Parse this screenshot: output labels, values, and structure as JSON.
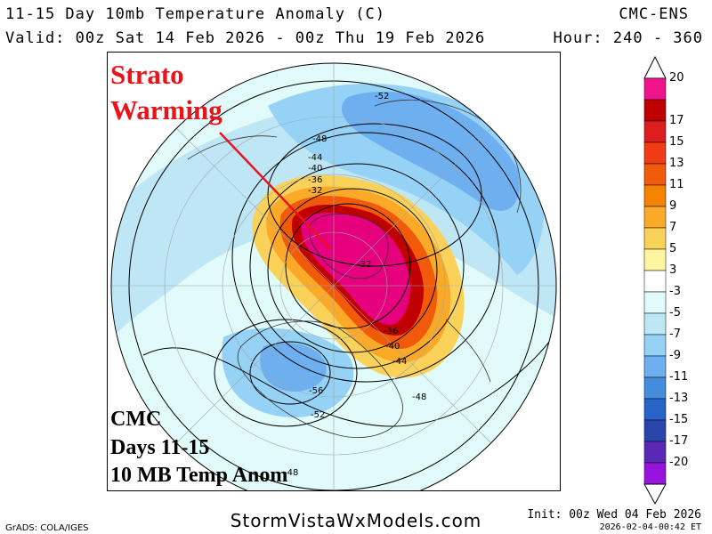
{
  "header": {
    "title": "11-15 Day 10mb Temperature Anomaly (C)",
    "model": "CMC-ENS",
    "valid": "Valid: 00z Sat 14 Feb 2026 - 00z Thu 19 Feb 2026",
    "hour": "Hour: 240 - 360"
  },
  "annotation": {
    "line1": "Strato",
    "line2": "Warming"
  },
  "label_box": {
    "line1": "CMC",
    "line2": "Days 11-15",
    "line3": "10 MB Temp Anom"
  },
  "footer": {
    "website": "StormVistaWxModels.com",
    "init": "Init: 00z Wed 04 Feb 2026",
    "stamp": "2026-02-04-00:42 ET",
    "credit": "GrADS: COLA/IGES"
  },
  "colorbar": {
    "ticks": [
      "20",
      "17",
      "15",
      "13",
      "11",
      "9",
      "7",
      "5",
      "3",
      "-3",
      "-5",
      "-7",
      "-9",
      "-11",
      "-13",
      "-15",
      "-17",
      "-20"
    ],
    "colors": [
      "#f0148c",
      "#c00000",
      "#dc1e1e",
      "#f03c14",
      "#f05a0a",
      "#f58200",
      "#faaa28",
      "#fad25a",
      "#fff5a0",
      "#ffffff",
      "#e1fafa",
      "#bee6f5",
      "#96d2f5",
      "#6eaff0",
      "#468cdc",
      "#2864c8",
      "#2846aa",
      "#5a28b4",
      "#9614dc"
    ]
  },
  "contour_labels": [
    "-52",
    "-48",
    "-44",
    "-40",
    "-36",
    "-32",
    "-32",
    "-36",
    "-40",
    "-44",
    "-48",
    "-56",
    "-52",
    "-48"
  ],
  "colors": {
    "warm_core": "#e6007e",
    "strato_annotation": "#e8141c"
  }
}
